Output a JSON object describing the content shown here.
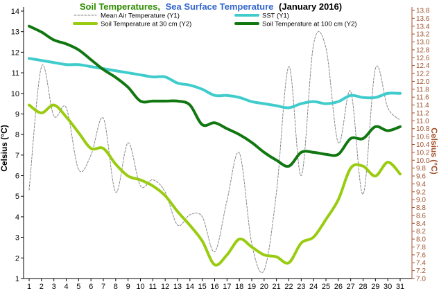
{
  "chart_data": {
    "type": "line",
    "title": {
      "part1": "Soil Temperatures,",
      "part2": "Sea Surface Temperature",
      "part3": "(January 2016)"
    },
    "ylabel": "Celsius (°C)",
    "y2label": "Celsius (°C)",
    "x": [
      1,
      2,
      3,
      4,
      5,
      6,
      7,
      8,
      9,
      10,
      11,
      12,
      13,
      14,
      15,
      16,
      17,
      18,
      19,
      20,
      21,
      22,
      23,
      24,
      25,
      26,
      27,
      28,
      29,
      30,
      31
    ],
    "ylim": [
      1,
      14
    ],
    "y2lim": [
      7.0,
      13.8
    ],
    "y_ticks": [
      1,
      2,
      3,
      4,
      5,
      6,
      7,
      8,
      9,
      10,
      11,
      12,
      13,
      14
    ],
    "y2_ticks": [
      "7.0",
      "7.2",
      "7.4",
      "7.6",
      "7.8",
      "8.0",
      "8.2",
      "8.4",
      "8.6",
      "8.8",
      "9.0",
      "9.2",
      "9.4",
      "9.6",
      "9.8",
      "10.0",
      "10.2",
      "10.4",
      "10.6",
      "10.8",
      "11.0",
      "11.2",
      "11.4",
      "11.6",
      "11.8",
      "12.0",
      "12.2",
      "12.4",
      "12.6",
      "12.8",
      "13.0",
      "13.2",
      "13.4",
      "13.6",
      "13.8"
    ],
    "grid": false,
    "legend_position": "top",
    "colors": {
      "title_green": "#2e8b00",
      "title_blue": "#3366cc",
      "left_axis": "#000000",
      "right_axis": "#a0522d"
    },
    "series": [
      {
        "name": "Mean Air Temperature (Y1)",
        "axis": "y1",
        "color": "#888888",
        "dashed": true,
        "width": 1,
        "values": [
          5.3,
          11.3,
          8.9,
          9.3,
          6.3,
          7.0,
          8.8,
          5.2,
          7.6,
          5.5,
          5.8,
          5.2,
          3.6,
          4.1,
          4.0,
          2.3,
          4.8,
          7.1,
          2.7,
          1.4,
          5.2,
          11.3,
          6.0,
          12.4,
          12.2,
          7.6,
          10.1,
          5.1,
          11.2,
          9.3,
          8.7
        ]
      },
      {
        "name": "SST (Y1)",
        "axis": "y1",
        "color": "#40cccc",
        "dashed": false,
        "width": 4,
        "values": [
          11.7,
          11.6,
          11.5,
          11.4,
          11.4,
          11.3,
          11.2,
          11.1,
          11.0,
          10.9,
          10.8,
          10.8,
          10.5,
          10.4,
          10.2,
          9.9,
          9.9,
          9.8,
          9.6,
          9.5,
          9.4,
          9.3,
          9.5,
          9.6,
          9.5,
          9.6,
          9.9,
          9.8,
          9.8,
          10.0,
          10.0
        ]
      },
      {
        "name": "Soil Temperature at 30 cm (Y2)",
        "axis": "y2",
        "color": "#99cc11",
        "dashed": false,
        "width": 4,
        "values": [
          11.4,
          11.2,
          11.4,
          11.1,
          10.7,
          10.3,
          10.3,
          9.9,
          9.6,
          9.5,
          9.35,
          9.1,
          8.7,
          8.35,
          7.95,
          7.35,
          7.6,
          8.0,
          7.8,
          7.6,
          7.55,
          7.4,
          7.9,
          8.05,
          8.5,
          9.0,
          9.8,
          9.85,
          9.6,
          9.95,
          9.65
        ]
      },
      {
        "name": "Soil Temperature at 100 cm (Y2)",
        "axis": "y2",
        "color": "#117711",
        "dashed": false,
        "width": 4,
        "values": [
          13.4,
          13.25,
          13.05,
          12.95,
          12.8,
          12.55,
          12.3,
          12.1,
          11.85,
          11.5,
          11.5,
          11.5,
          11.5,
          11.4,
          10.9,
          10.95,
          10.8,
          10.65,
          10.45,
          10.2,
          10.0,
          9.85,
          10.2,
          10.2,
          10.15,
          10.15,
          10.55,
          10.55,
          10.85,
          10.75,
          10.85
        ]
      }
    ]
  }
}
